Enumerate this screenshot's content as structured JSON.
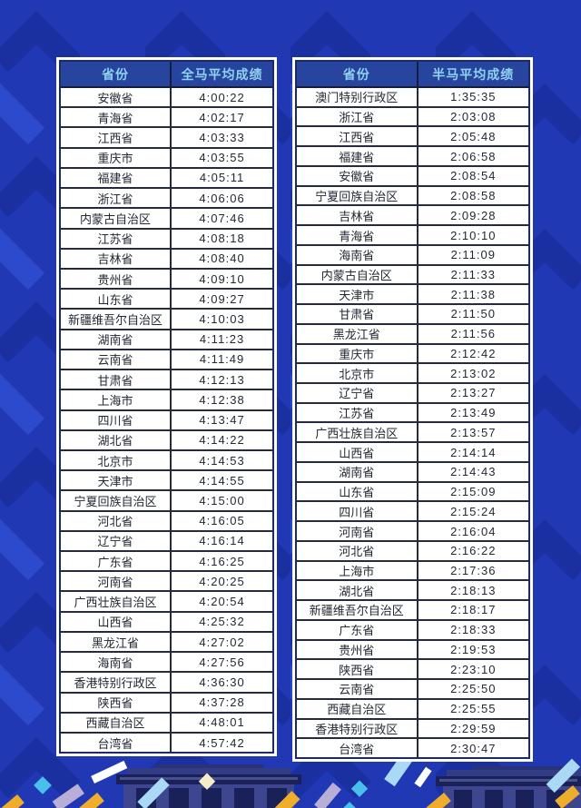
{
  "page": {
    "background_color": "#2138b4",
    "pattern_color_dark": "#1a2fa0",
    "pattern_color_light": "#2c4acb"
  },
  "colors": {
    "header_bg": "#27459e",
    "header_text": "#8fd2f2",
    "cell_bg": "#ffffff",
    "cell_text": "#232834",
    "grid_line": "#252b3d",
    "table_outer_border": "#ffffff"
  },
  "tables": [
    {
      "id": "full-marathon",
      "headers": [
        "省份",
        "全马平均成绩"
      ],
      "rows": [
        [
          "安徽省",
          "4:00:22"
        ],
        [
          "青海省",
          "4:02:17"
        ],
        [
          "江西省",
          "4:03:33"
        ],
        [
          "重庆市",
          "4:03:55"
        ],
        [
          "福建省",
          "4:05:11"
        ],
        [
          "浙江省",
          "4:06:06"
        ],
        [
          "内蒙古自治区",
          "4:07:46"
        ],
        [
          "江苏省",
          "4:08:18"
        ],
        [
          "吉林省",
          "4:08:40"
        ],
        [
          "贵州省",
          "4:09:10"
        ],
        [
          "山东省",
          "4:09:27"
        ],
        [
          "新疆维吾尔自治区",
          "4:10:03"
        ],
        [
          "湖南省",
          "4:11:23"
        ],
        [
          "云南省",
          "4:11:49"
        ],
        [
          "甘肃省",
          "4:12:13"
        ],
        [
          "上海市",
          "4:12:38"
        ],
        [
          "四川省",
          "4:13:47"
        ],
        [
          "湖北省",
          "4:14:22"
        ],
        [
          "北京市",
          "4:14:53"
        ],
        [
          "天津市",
          "4:14:55"
        ],
        [
          "宁夏回族自治区",
          "4:15:00"
        ],
        [
          "河北省",
          "4:16:05"
        ],
        [
          "辽宁省",
          "4:16:14"
        ],
        [
          "广东省",
          "4:16:25"
        ],
        [
          "河南省",
          "4:20:25"
        ],
        [
          "广西壮族自治区",
          "4:20:54"
        ],
        [
          "山西省",
          "4:25:32"
        ],
        [
          "黑龙江省",
          "4:27:02"
        ],
        [
          "海南省",
          "4:27:56"
        ],
        [
          "香港特别行政区",
          "4:36:30"
        ],
        [
          "陕西省",
          "4:37:28"
        ],
        [
          "西藏自治区",
          "4:48:01"
        ],
        [
          "台湾省",
          "4:57:42"
        ]
      ]
    },
    {
      "id": "half-marathon",
      "headers": [
        "省份",
        "半马平均成绩"
      ],
      "rows": [
        [
          "澳门特别行政区",
          "1:35:35"
        ],
        [
          "浙江省",
          "2:03:08"
        ],
        [
          "江西省",
          "2:05:48"
        ],
        [
          "福建省",
          "2:06:58"
        ],
        [
          "安徽省",
          "2:08:54"
        ],
        [
          "宁夏回族自治区",
          "2:08:58"
        ],
        [
          "吉林省",
          "2:09:28"
        ],
        [
          "青海省",
          "2:10:10"
        ],
        [
          "海南省",
          "2:11:09"
        ],
        [
          "内蒙古自治区",
          "2:11:33"
        ],
        [
          "天津市",
          "2:11:38"
        ],
        [
          "甘肃省",
          "2:11:50"
        ],
        [
          "黑龙江省",
          "2:11:56"
        ],
        [
          "重庆市",
          "2:12:42"
        ],
        [
          "北京市",
          "2:13:02"
        ],
        [
          "辽宁省",
          "2:13:27"
        ],
        [
          "江苏省",
          "2:13:49"
        ],
        [
          "广西壮族自治区",
          "2:13:57"
        ],
        [
          "山西省",
          "2:14:14"
        ],
        [
          "湖南省",
          "2:14:43"
        ],
        [
          "山东省",
          "2:15:09"
        ],
        [
          "四川省",
          "2:15:24"
        ],
        [
          "河南省",
          "2:16:04"
        ],
        [
          "河北省",
          "2:16:22"
        ],
        [
          "上海市",
          "2:17:36"
        ],
        [
          "湖北省",
          "2:18:13"
        ],
        [
          "新疆维吾尔自治区",
          "2:18:17"
        ],
        [
          "广东省",
          "2:18:33"
        ],
        [
          "贵州省",
          "2:19:53"
        ],
        [
          "陕西省",
          "2:23:10"
        ],
        [
          "云南省",
          "2:25:50"
        ],
        [
          "西藏自治区",
          "2:25:55"
        ],
        [
          "香港特别行政区",
          "2:29:59"
        ],
        [
          "台湾省",
          "2:30:47"
        ]
      ]
    }
  ],
  "decor": {
    "building_color": "#3d468f",
    "building_shadow": "#1a2158",
    "confetti_colors": [
      "#a9d9f5",
      "#ffffff",
      "#eead2b",
      "#b9aed8",
      "#f5ecc8",
      "#49c0ea"
    ]
  }
}
